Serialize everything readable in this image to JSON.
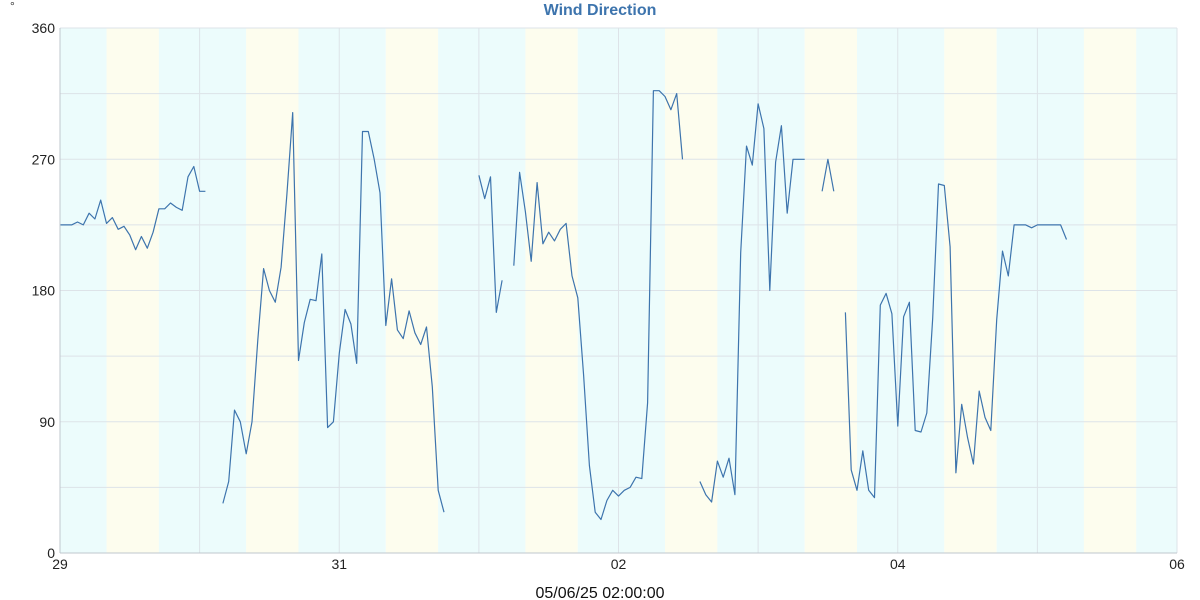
{
  "chart_data": {
    "type": "line",
    "title": "Wind Direction",
    "unit_label": "°",
    "timestamp_label": "05/06/25 02:00:00",
    "x_range": [
      "2025-05-29T00:00",
      "2025-06-06T00:00"
    ],
    "ylim": [
      0,
      360
    ],
    "y_ticks": [
      "0",
      "90",
      "180",
      "270",
      "360"
    ],
    "x_ticks": [
      {
        "label": "29",
        "time": "2025-05-29T00:00"
      },
      {
        "label": "31",
        "time": "2025-05-31T00:00"
      },
      {
        "label": "02",
        "time": "2025-06-02T00:00"
      },
      {
        "label": "04",
        "time": "2025-06-04T00:00"
      },
      {
        "label": "06",
        "time": "2025-06-06T00:00"
      }
    ],
    "grid": true,
    "line_color": "#3d74ad",
    "night_band_color": "#ecfcfc",
    "day_band_color": "#fdfdee",
    "bands": [
      {
        "start": "2025-05-29T00:00",
        "end": "2025-05-29T08:00",
        "kind": "night"
      },
      {
        "start": "2025-05-29T08:00",
        "end": "2025-05-29T17:00",
        "kind": "day"
      },
      {
        "start": "2025-05-29T17:00",
        "end": "2025-05-30T08:00",
        "kind": "night"
      },
      {
        "start": "2025-05-30T08:00",
        "end": "2025-05-30T17:00",
        "kind": "day"
      },
      {
        "start": "2025-05-30T17:00",
        "end": "2025-05-31T08:00",
        "kind": "night"
      },
      {
        "start": "2025-05-31T08:00",
        "end": "2025-05-31T17:00",
        "kind": "day"
      },
      {
        "start": "2025-05-31T17:00",
        "end": "2025-06-01T08:00",
        "kind": "night"
      },
      {
        "start": "2025-06-01T08:00",
        "end": "2025-06-01T17:00",
        "kind": "day"
      },
      {
        "start": "2025-06-01T17:00",
        "end": "2025-06-02T08:00",
        "kind": "night"
      },
      {
        "start": "2025-06-02T08:00",
        "end": "2025-06-02T17:00",
        "kind": "day"
      },
      {
        "start": "2025-06-02T17:00",
        "end": "2025-06-03T08:00",
        "kind": "night"
      },
      {
        "start": "2025-06-03T08:00",
        "end": "2025-06-03T17:00",
        "kind": "day"
      },
      {
        "start": "2025-06-03T17:00",
        "end": "2025-06-04T08:00",
        "kind": "night"
      },
      {
        "start": "2025-06-04T08:00",
        "end": "2025-06-04T17:00",
        "kind": "day"
      },
      {
        "start": "2025-06-04T17:00",
        "end": "2025-06-05T08:00",
        "kind": "night"
      },
      {
        "start": "2025-06-05T08:00",
        "end": "2025-06-05T17:00",
        "kind": "day"
      },
      {
        "start": "2025-06-05T17:00",
        "end": "2025-06-06T00:00",
        "kind": "night"
      }
    ],
    "series": [
      {
        "segments": [
          [
            [
              "2025-05-29T00:00",
              225
            ],
            [
              "2025-05-29T01:00",
              225
            ],
            [
              "2025-05-29T02:00",
              225
            ],
            [
              "2025-05-29T03:00",
              227
            ],
            [
              "2025-05-29T04:00",
              225
            ],
            [
              "2025-05-29T05:00",
              233
            ],
            [
              "2025-05-29T06:00",
              229
            ],
            [
              "2025-05-29T07:00",
              242
            ],
            [
              "2025-05-29T08:00",
              226
            ],
            [
              "2025-05-29T09:00",
              230
            ],
            [
              "2025-05-29T10:00",
              222
            ],
            [
              "2025-05-29T11:00",
              224
            ],
            [
              "2025-05-29T12:00",
              218
            ],
            [
              "2025-05-29T13:00",
              208
            ],
            [
              "2025-05-29T14:00",
              217
            ],
            [
              "2025-05-29T15:00",
              209
            ],
            [
              "2025-05-29T16:00",
              220
            ],
            [
              "2025-05-29T17:00",
              236
            ],
            [
              "2025-05-29T18:00",
              236
            ],
            [
              "2025-05-29T19:00",
              240
            ],
            [
              "2025-05-29T20:00",
              237
            ],
            [
              "2025-05-29T21:00",
              235
            ],
            [
              "2025-05-29T22:00",
              258
            ],
            [
              "2025-05-29T23:00",
              265
            ],
            [
              "2025-05-30T00:00",
              248
            ],
            [
              "2025-05-30T01:00",
              248
            ]
          ],
          [
            [
              "2025-05-30T04:00",
              34
            ],
            [
              "2025-05-30T05:00",
              49
            ],
            [
              "2025-05-30T06:00",
              98
            ],
            [
              "2025-05-30T07:00",
              90
            ],
            [
              "2025-05-30T08:00",
              68
            ],
            [
              "2025-05-30T09:00",
              90
            ],
            [
              "2025-05-30T10:00",
              146
            ],
            [
              "2025-05-30T11:00",
              195
            ],
            [
              "2025-05-30T12:00",
              180
            ],
            [
              "2025-05-30T13:00",
              172
            ],
            [
              "2025-05-30T14:00",
              196
            ],
            [
              "2025-05-30T15:00",
              246
            ],
            [
              "2025-05-30T16:00",
              302
            ],
            [
              "2025-05-30T17:00",
              132
            ],
            [
              "2025-05-30T18:00",
              158
            ],
            [
              "2025-05-30T19:00",
              174
            ],
            [
              "2025-05-30T20:00",
              173
            ],
            [
              "2025-05-30T21:00",
              205
            ],
            [
              "2025-05-30T22:00",
              86
            ],
            [
              "2025-05-30T23:00",
              90
            ],
            [
              "2025-05-31T00:00",
              137
            ],
            [
              "2025-05-31T01:00",
              167
            ],
            [
              "2025-05-31T02:00",
              157
            ],
            [
              "2025-05-31T03:00",
              130
            ],
            [
              "2025-05-31T04:00",
              289
            ],
            [
              "2025-05-31T05:00",
              289
            ],
            [
              "2025-05-31T06:00",
              270
            ],
            [
              "2025-05-31T07:00",
              247
            ],
            [
              "2025-05-31T08:00",
              156
            ],
            [
              "2025-05-31T09:00",
              188
            ],
            [
              "2025-05-31T10:00",
              153
            ],
            [
              "2025-05-31T11:00",
              147
            ],
            [
              "2025-05-31T12:00",
              166
            ],
            [
              "2025-05-31T13:00",
              151
            ],
            [
              "2025-05-31T14:00",
              143
            ],
            [
              "2025-05-31T15:00",
              155
            ],
            [
              "2025-05-31T16:00",
              114
            ],
            [
              "2025-05-31T17:00",
              43
            ],
            [
              "2025-05-31T18:00",
              28
            ]
          ],
          [
            [
              "2025-06-01T00:00",
              259
            ],
            [
              "2025-06-01T01:00",
              243
            ],
            [
              "2025-06-01T02:00",
              258
            ],
            [
              "2025-06-01T03:00",
              165
            ],
            [
              "2025-06-01T04:00",
              187
            ]
          ],
          [
            [
              "2025-06-01T06:00",
              197
            ],
            [
              "2025-06-01T07:00",
              261
            ],
            [
              "2025-06-01T08:00",
              234
            ],
            [
              "2025-06-01T09:00",
              200
            ],
            [
              "2025-06-01T10:00",
              254
            ],
            [
              "2025-06-01T11:00",
              212
            ],
            [
              "2025-06-01T12:00",
              220
            ],
            [
              "2025-06-01T13:00",
              214
            ],
            [
              "2025-06-01T14:00",
              222
            ],
            [
              "2025-06-01T15:00",
              226
            ],
            [
              "2025-06-01T16:00",
              190
            ],
            [
              "2025-06-01T17:00",
              175
            ],
            [
              "2025-06-01T18:00",
              122
            ],
            [
              "2025-06-01T19:00",
              60
            ],
            [
              "2025-06-01T20:00",
              28
            ],
            [
              "2025-06-01T21:00",
              23
            ],
            [
              "2025-06-01T22:00",
              36
            ],
            [
              "2025-06-01T23:00",
              43
            ],
            [
              "2025-06-02T00:00",
              39
            ],
            [
              "2025-06-02T01:00",
              43
            ],
            [
              "2025-06-02T02:00",
              45
            ],
            [
              "2025-06-02T03:00",
              52
            ],
            [
              "2025-06-02T04:00",
              51
            ],
            [
              "2025-06-02T05:00",
              103
            ],
            [
              "2025-06-02T06:00",
              317
            ],
            [
              "2025-06-02T07:00",
              317
            ],
            [
              "2025-06-02T08:00",
              313
            ],
            [
              "2025-06-02T09:00",
              304
            ],
            [
              "2025-06-02T10:00",
              315
            ],
            [
              "2025-06-02T11:00",
              270
            ]
          ],
          [
            [
              "2025-06-02T14:00",
              49
            ],
            [
              "2025-06-02T15:00",
              40
            ],
            [
              "2025-06-02T16:00",
              35
            ],
            [
              "2025-06-02T17:00",
              63
            ],
            [
              "2025-06-02T18:00",
              52
            ],
            [
              "2025-06-02T19:00",
              65
            ],
            [
              "2025-06-02T20:00",
              40
            ],
            [
              "2025-06-02T21:00",
              206
            ],
            [
              "2025-06-02T22:00",
              279
            ],
            [
              "2025-06-02T23:00",
              266
            ],
            [
              "2025-06-03T00:00",
              308
            ],
            [
              "2025-06-03T01:00",
              291
            ],
            [
              "2025-06-03T02:00",
              180
            ],
            [
              "2025-06-03T03:00",
              268
            ],
            [
              "2025-06-03T04:00",
              293
            ],
            [
              "2025-06-03T05:00",
              233
            ],
            [
              "2025-06-03T06:00",
              270
            ],
            [
              "2025-06-03T07:00",
              270
            ],
            [
              "2025-06-03T08:00",
              270
            ]
          ],
          [
            [
              "2025-06-03T11:00",
              248
            ],
            [
              "2025-06-03T12:00",
              270
            ],
            [
              "2025-06-03T13:00",
              248
            ]
          ],
          [
            [
              "2025-06-03T15:00",
              165
            ],
            [
              "2025-06-03T16:00",
              57
            ],
            [
              "2025-06-03T17:00",
              43
            ],
            [
              "2025-06-03T18:00",
              70
            ],
            [
              "2025-06-03T19:00",
              43
            ],
            [
              "2025-06-03T20:00",
              38
            ],
            [
              "2025-06-03T21:00",
              170
            ],
            [
              "2025-06-03T22:00",
              178
            ],
            [
              "2025-06-03T23:00",
              164
            ],
            [
              "2025-06-04T00:00",
              87
            ],
            [
              "2025-06-04T01:00",
              162
            ],
            [
              "2025-06-04T02:00",
              172
            ],
            [
              "2025-06-04T03:00",
              84
            ],
            [
              "2025-06-04T04:00",
              83
            ],
            [
              "2025-06-04T05:00",
              96
            ],
            [
              "2025-06-04T06:00",
              161
            ],
            [
              "2025-06-04T07:00",
              253
            ],
            [
              "2025-06-04T08:00",
              252
            ],
            [
              "2025-06-04T09:00",
              210
            ],
            [
              "2025-06-04T10:00",
              55
            ],
            [
              "2025-06-04T11:00",
              102
            ],
            [
              "2025-06-04T12:00",
              79
            ],
            [
              "2025-06-04T13:00",
              61
            ],
            [
              "2025-06-04T14:00",
              111
            ],
            [
              "2025-06-04T15:00",
              93
            ],
            [
              "2025-06-04T16:00",
              84
            ],
            [
              "2025-06-04T17:00",
              160
            ],
            [
              "2025-06-04T18:00",
              207
            ],
            [
              "2025-06-04T19:00",
              190
            ],
            [
              "2025-06-04T20:00",
              225
            ],
            [
              "2025-06-04T21:00",
              225
            ],
            [
              "2025-06-04T22:00",
              225
            ],
            [
              "2025-06-04T23:00",
              223
            ],
            [
              "2025-06-05T00:00",
              225
            ],
            [
              "2025-06-05T01:00",
              225
            ],
            [
              "2025-06-05T02:00",
              225
            ],
            [
              "2025-06-05T03:00",
              225
            ],
            [
              "2025-06-05T04:00",
              225
            ],
            [
              "2025-06-05T05:00",
              215
            ]
          ]
        ]
      }
    ]
  }
}
